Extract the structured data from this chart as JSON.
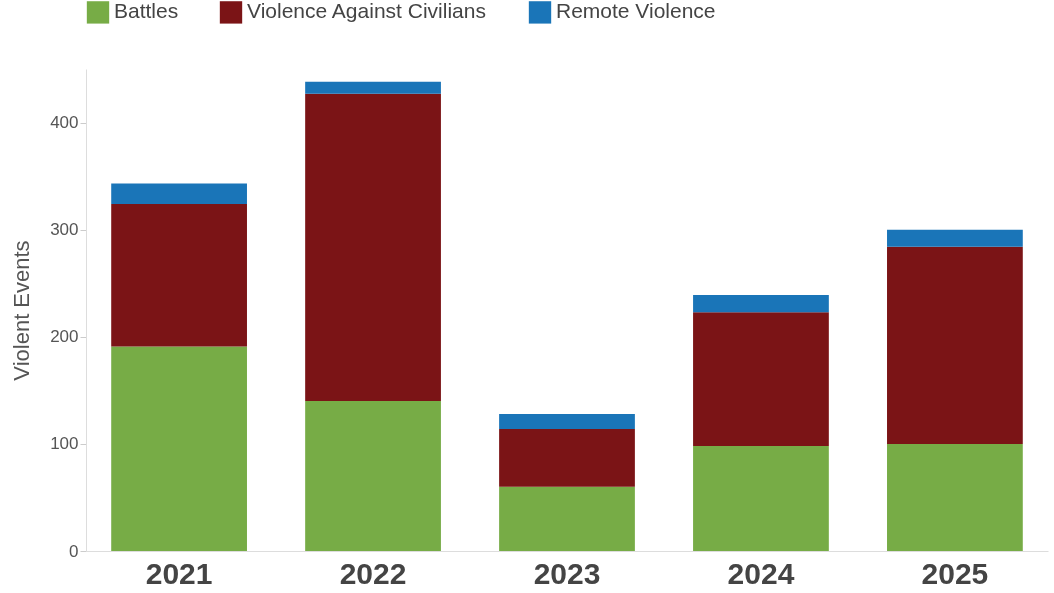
{
  "chart_data": {
    "type": "bar",
    "stacked": true,
    "ylabel": "Violent Events",
    "categories": [
      "2021",
      "2022",
      "2023",
      "2024",
      "2025"
    ],
    "series": [
      {
        "name": "Battles",
        "color": "#77ac46",
        "values": [
          191,
          140,
          60,
          98,
          100
        ]
      },
      {
        "name": "Violence Against Civilians",
        "color": "#7b1416",
        "values": [
          133,
          287,
          54,
          125,
          184
        ]
      },
      {
        "name": "Remote Violence",
        "color": "#1a75b8",
        "values": [
          19,
          11,
          14,
          16,
          16
        ]
      }
    ],
    "ylim": [
      0,
      450
    ],
    "yticks": [
      0,
      100,
      200,
      300,
      400
    ],
    "grid": false,
    "legend": "top left"
  }
}
